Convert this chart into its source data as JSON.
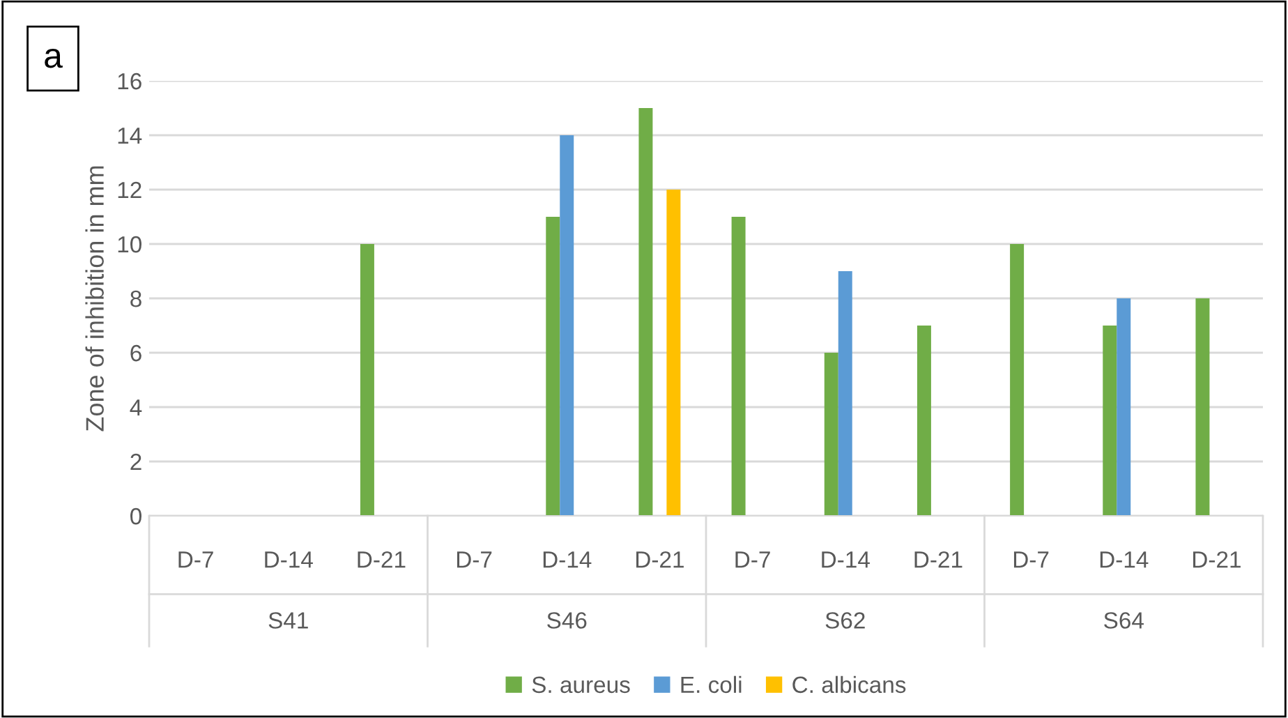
{
  "chart_data": {
    "type": "bar",
    "ylabel": "Zone of inhibition in mm",
    "categories": [
      "D-7",
      "D-14",
      "D-21",
      "D-7",
      "D-14",
      "D-21",
      "D-7",
      "D-14",
      "D-21",
      "D-7",
      "D-14",
      "D-21"
    ],
    "series": [
      {
        "name": "S. aureus",
        "color": "#70ad47",
        "values": [
          null,
          null,
          10,
          null,
          11,
          15,
          11,
          6,
          7,
          10,
          7,
          8
        ]
      },
      {
        "name": "E. coli",
        "color": "#5b9bd5",
        "values": [
          null,
          null,
          null,
          null,
          14,
          null,
          null,
          9,
          null,
          null,
          8,
          null
        ]
      },
      {
        "name": "C. albicans",
        "color": "#ffc000",
        "values": [
          null,
          null,
          null,
          null,
          null,
          12,
          null,
          null,
          null,
          null,
          null,
          null
        ]
      }
    ],
    "ylim": [
      0,
      16
    ],
    "yticks": [
      0,
      2,
      4,
      6,
      8,
      10,
      12,
      14,
      16
    ],
    "grid": "y",
    "legend": "bottom",
    "annotations": [
      "a",
      "S41",
      "S46",
      "S62",
      "S64"
    ]
  }
}
